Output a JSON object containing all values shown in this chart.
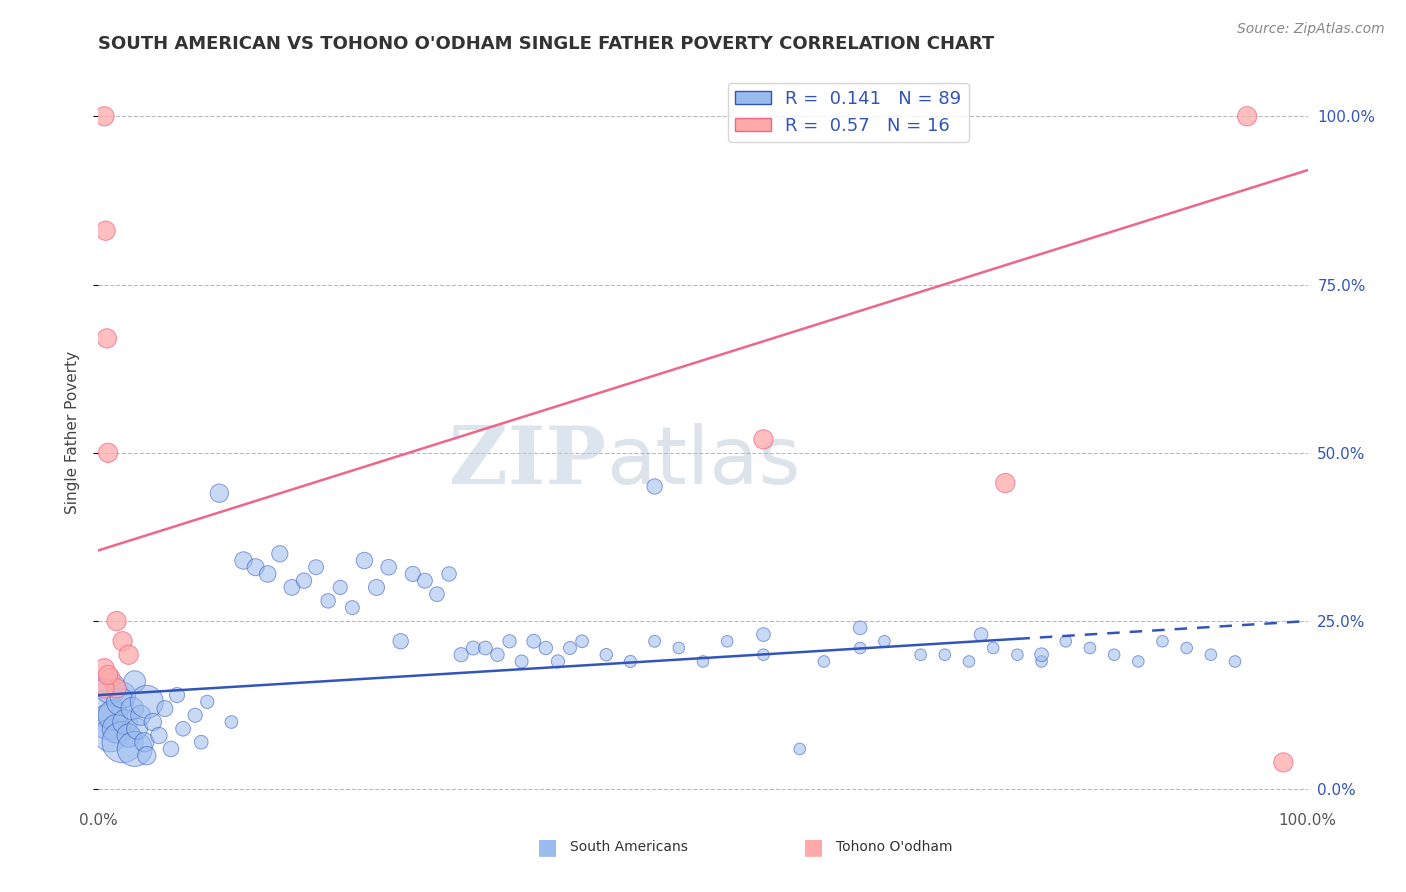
{
  "title": "SOUTH AMERICAN VS TOHONO O'ODHAM SINGLE FATHER POVERTY CORRELATION CHART",
  "source": "Source: ZipAtlas.com",
  "ylabel": "Single Father Poverty",
  "xlim": [
    0,
    1
  ],
  "ylim": [
    -0.02,
    1.08
  ],
  "blue_R": 0.141,
  "blue_N": 89,
  "pink_R": 0.57,
  "pink_N": 16,
  "blue_color": "#99BBEE",
  "pink_color": "#FFAAAA",
  "blue_line_color": "#3355BB",
  "pink_line_color": "#EE6688",
  "background_color": "#FFFFFF",
  "grid_color": "#BBBBBB",
  "watermark_text": "ZIPatlas",
  "blue_scatter_x": [
    0.005,
    0.008,
    0.01,
    0.01,
    0.012,
    0.015,
    0.018,
    0.02,
    0.02,
    0.022,
    0.025,
    0.028,
    0.03,
    0.03,
    0.032,
    0.035,
    0.038,
    0.04,
    0.04,
    0.045,
    0.05,
    0.055,
    0.06,
    0.065,
    0.07,
    0.08,
    0.085,
    0.09,
    0.1,
    0.11,
    0.12,
    0.13,
    0.14,
    0.15,
    0.16,
    0.17,
    0.18,
    0.19,
    0.2,
    0.21,
    0.22,
    0.23,
    0.24,
    0.25,
    0.26,
    0.27,
    0.28,
    0.29,
    0.3,
    0.31,
    0.32,
    0.33,
    0.34,
    0.35,
    0.36,
    0.37,
    0.38,
    0.39,
    0.4,
    0.42,
    0.44,
    0.46,
    0.48,
    0.5,
    0.52,
    0.55,
    0.58,
    0.6,
    0.63,
    0.65,
    0.68,
    0.7,
    0.72,
    0.74,
    0.76,
    0.78,
    0.8,
    0.82,
    0.84,
    0.86,
    0.88,
    0.9,
    0.92,
    0.94,
    0.55,
    0.63,
    0.73,
    0.78,
    0.46
  ],
  "blue_scatter_y": [
    0.12,
    0.1,
    0.08,
    0.15,
    0.11,
    0.09,
    0.13,
    0.07,
    0.14,
    0.1,
    0.08,
    0.12,
    0.06,
    0.16,
    0.09,
    0.11,
    0.07,
    0.13,
    0.05,
    0.1,
    0.08,
    0.12,
    0.06,
    0.14,
    0.09,
    0.11,
    0.07,
    0.13,
    0.44,
    0.1,
    0.34,
    0.33,
    0.32,
    0.35,
    0.3,
    0.31,
    0.33,
    0.28,
    0.3,
    0.27,
    0.34,
    0.3,
    0.33,
    0.22,
    0.32,
    0.31,
    0.29,
    0.32,
    0.2,
    0.21,
    0.21,
    0.2,
    0.22,
    0.19,
    0.22,
    0.21,
    0.19,
    0.21,
    0.22,
    0.2,
    0.19,
    0.22,
    0.21,
    0.19,
    0.22,
    0.2,
    0.06,
    0.19,
    0.21,
    0.22,
    0.2,
    0.2,
    0.19,
    0.21,
    0.2,
    0.19,
    0.22,
    0.21,
    0.2,
    0.19,
    0.22,
    0.21,
    0.2,
    0.19,
    0.23,
    0.24,
    0.23,
    0.2,
    0.45
  ],
  "blue_scatter_size": [
    200,
    180,
    160,
    140,
    130,
    120,
    110,
    250,
    100,
    90,
    80,
    75,
    180,
    70,
    65,
    60,
    55,
    160,
    50,
    45,
    40,
    38,
    36,
    34,
    32,
    30,
    28,
    26,
    50,
    24,
    45,
    43,
    41,
    39,
    37,
    35,
    33,
    31,
    30,
    29,
    40,
    38,
    36,
    35,
    34,
    33,
    32,
    31,
    30,
    29,
    28,
    27,
    26,
    25,
    28,
    27,
    26,
    25,
    24,
    23,
    22,
    21,
    20,
    20,
    20,
    20,
    20,
    20,
    20,
    20,
    20,
    20,
    20,
    20,
    20,
    20,
    20,
    20,
    20,
    20,
    20,
    20,
    20,
    20,
    28,
    28,
    28,
    28,
    35
  ],
  "pink_scatter_x": [
    0.005,
    0.006,
    0.007,
    0.008,
    0.015,
    0.02,
    0.025,
    0.55,
    0.75,
    0.005,
    0.01,
    0.015,
    0.95,
    0.005,
    0.008,
    0.98
  ],
  "pink_scatter_y": [
    1.0,
    0.83,
    0.67,
    0.5,
    0.25,
    0.22,
    0.2,
    0.52,
    0.455,
    0.18,
    0.165,
    0.15,
    1.0,
    0.15,
    0.17,
    0.04
  ],
  "pink_scatter_size": [
    55,
    55,
    55,
    55,
    55,
    55,
    55,
    55,
    55,
    55,
    55,
    55,
    55,
    55,
    55,
    55
  ],
  "blue_line_y_start": 0.14,
  "blue_line_y_end": 0.25,
  "blue_line_dash_x": 0.76,
  "pink_line_y_start": 0.355,
  "pink_line_y_end": 0.92,
  "yticks": [
    0.0,
    0.25,
    0.5,
    0.75,
    1.0
  ],
  "ytick_labels_right": [
    "0.0%",
    "25.0%",
    "50.0%",
    "75.0%",
    "100.0%"
  ],
  "xtick_labels": [
    "0.0%",
    "100.0%"
  ],
  "title_fontsize": 13,
  "axis_label_fontsize": 11,
  "tick_fontsize": 11,
  "legend_fontsize": 13,
  "source_fontsize": 10
}
